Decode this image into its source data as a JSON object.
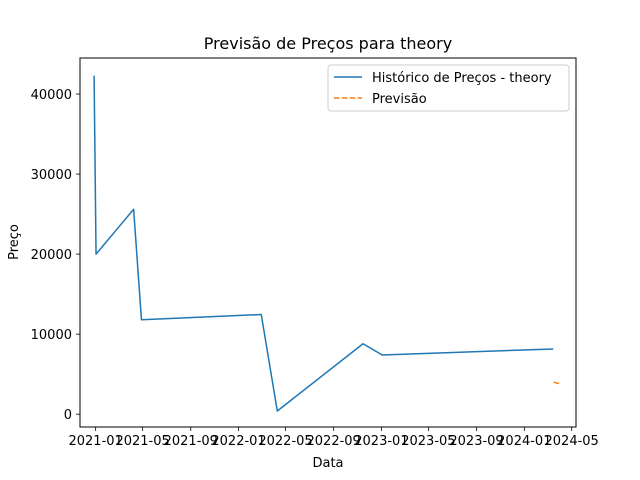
{
  "chart_data": {
    "type": "line",
    "title": "Previsão de Preços para theory",
    "xlabel": "Data",
    "ylabel": "Preço",
    "x_axis_type": "date",
    "xlim": [
      "2020-11-22",
      "2024-05-12"
    ],
    "ylim": [
      -1600,
      44500
    ],
    "x_ticks": [
      {
        "value": "2021-01-01",
        "label": "2021-01"
      },
      {
        "value": "2021-05-01",
        "label": "2021-05"
      },
      {
        "value": "2021-09-01",
        "label": "2021-09"
      },
      {
        "value": "2022-01-01",
        "label": "2022-01"
      },
      {
        "value": "2022-05-01",
        "label": "2022-05"
      },
      {
        "value": "2022-09-01",
        "label": "2022-09"
      },
      {
        "value": "2023-01-01",
        "label": "2023-01"
      },
      {
        "value": "2023-05-01",
        "label": "2023-05"
      },
      {
        "value": "2023-09-01",
        "label": "2023-09"
      },
      {
        "value": "2024-01-01",
        "label": "2024-01"
      },
      {
        "value": "2024-05-01",
        "label": "2024-05"
      }
    ],
    "y_ticks": [
      {
        "value": 0,
        "label": "0"
      },
      {
        "value": 10000,
        "label": "10000"
      },
      {
        "value": 20000,
        "label": "20000"
      },
      {
        "value": 30000,
        "label": "30000"
      },
      {
        "value": 40000,
        "label": "40000"
      }
    ],
    "grid": false,
    "legend_position": "upper-right",
    "series": [
      {
        "name": "Histórico de Preços - theory",
        "color": "#1f77b4",
        "style": "solid",
        "points": [
          {
            "x": "2020-12-28",
            "y": 42300
          },
          {
            "x": "2021-01-02",
            "y": 20000
          },
          {
            "x": "2021-04-08",
            "y": 25600
          },
          {
            "x": "2021-04-28",
            "y": 11800
          },
          {
            "x": "2022-02-28",
            "y": 12450
          },
          {
            "x": "2022-04-10",
            "y": 400
          },
          {
            "x": "2022-11-15",
            "y": 8800
          },
          {
            "x": "2023-01-03",
            "y": 7400
          },
          {
            "x": "2024-03-15",
            "y": 8150
          }
        ]
      },
      {
        "name": "Previsão",
        "color": "#ff7f0e",
        "style": "dashed",
        "points": [
          {
            "x": "2024-03-16",
            "y": 4000
          },
          {
            "x": "2024-03-31",
            "y": 3800
          }
        ]
      }
    ]
  }
}
